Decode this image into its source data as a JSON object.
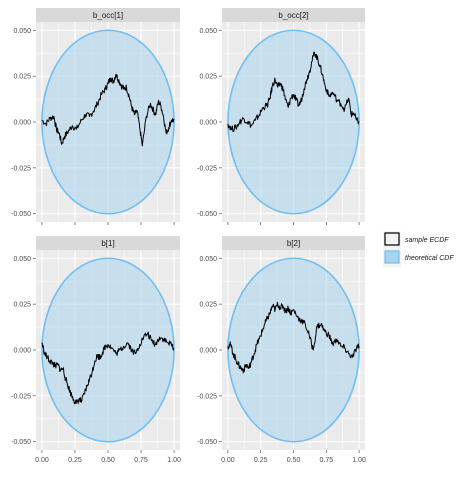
{
  "chart_data": {
    "type": "line",
    "layout": "facet_wrap_2x2",
    "colors": {
      "panel_bg": "#ebebeb",
      "grid": "#ffffff",
      "strip_bg": "#d9d9d9",
      "band_fill": "#a9d3ec",
      "band_stroke": "#73bff4",
      "ecdf_line": "#000000"
    },
    "legend": {
      "position": "right",
      "items": [
        {
          "label": "sample ECDF",
          "key": "ecdf",
          "icon": "outlined-box"
        },
        {
          "label": "theoretical CDF",
          "key": "band",
          "icon": "filled-box"
        }
      ]
    },
    "panels": [
      {
        "title": "b_occ[1]",
        "x_ticks": [],
        "y_ticks": [
          "-0.050",
          "-0.025",
          "0.000",
          "0.025",
          "0.050"
        ],
        "xlim": [
          0,
          1
        ],
        "ylim": [
          -0.05,
          0.05
        ],
        "ecdf_diff": {
          "x": [
            0.0,
            0.03,
            0.06,
            0.09,
            0.11,
            0.13,
            0.15,
            0.17,
            0.2,
            0.23,
            0.26,
            0.3,
            0.33,
            0.36,
            0.39,
            0.42,
            0.45,
            0.48,
            0.5,
            0.52,
            0.54,
            0.56,
            0.58,
            0.6,
            0.62,
            0.64,
            0.66,
            0.68,
            0.7,
            0.72,
            0.74,
            0.76,
            0.79,
            0.82,
            0.84,
            0.86,
            0.88,
            0.9,
            0.92,
            0.94,
            0.96,
            0.98,
            1.0
          ],
          "y": [
            0.001,
            -0.001,
            0.002,
            0.003,
            -0.004,
            -0.006,
            -0.012,
            -0.008,
            -0.005,
            -0.002,
            -0.004,
            0.001,
            0.004,
            0.003,
            0.006,
            0.01,
            0.015,
            0.018,
            0.021,
            0.024,
            0.022,
            0.026,
            0.023,
            0.02,
            0.018,
            0.019,
            0.014,
            0.008,
            0.004,
            0.006,
            -0.003,
            -0.013,
            0.003,
            0.01,
            0.007,
            0.004,
            0.011,
            0.009,
            0.003,
            -0.006,
            -0.003,
            0.001,
            0.001
          ]
        }
      },
      {
        "title": "b_occ[2]",
        "x_ticks": [],
        "y_ticks": [
          "-0.050",
          "-0.025",
          "0.000",
          "0.025",
          "0.050"
        ],
        "xlim": [
          0,
          1
        ],
        "ylim": [
          -0.05,
          0.05
        ],
        "ecdf_diff": {
          "x": [
            0.0,
            0.03,
            0.06,
            0.09,
            0.12,
            0.15,
            0.18,
            0.21,
            0.24,
            0.27,
            0.3,
            0.32,
            0.34,
            0.36,
            0.38,
            0.4,
            0.42,
            0.44,
            0.46,
            0.48,
            0.5,
            0.52,
            0.54,
            0.56,
            0.58,
            0.6,
            0.62,
            0.64,
            0.66,
            0.68,
            0.7,
            0.72,
            0.74,
            0.77,
            0.8,
            0.83,
            0.86,
            0.89,
            0.92,
            0.94,
            0.96,
            0.98,
            1.0
          ],
          "y": [
            -0.001,
            -0.004,
            -0.003,
            0.0,
            0.002,
            0.0,
            -0.002,
            0.001,
            0.004,
            0.008,
            0.009,
            0.013,
            0.02,
            0.023,
            0.019,
            0.021,
            0.018,
            0.012,
            0.008,
            0.013,
            0.015,
            0.012,
            0.009,
            0.012,
            0.018,
            0.023,
            0.027,
            0.033,
            0.038,
            0.035,
            0.031,
            0.026,
            0.02,
            0.014,
            0.016,
            0.012,
            0.01,
            0.007,
            0.013,
            0.004,
            0.005,
            0.001,
            0.0
          ]
        }
      },
      {
        "title": "b[1]",
        "x_ticks": [
          "0.00",
          "0.25",
          "0.50",
          "0.75",
          "1.00"
        ],
        "y_ticks": [
          "-0.050",
          "-0.025",
          "0.000",
          "0.025",
          "0.050"
        ],
        "xlim": [
          0,
          1
        ],
        "ylim": [
          -0.05,
          0.05
        ],
        "ecdf_diff": {
          "x": [
            0.0,
            0.02,
            0.04,
            0.06,
            0.08,
            0.1,
            0.12,
            0.14,
            0.16,
            0.18,
            0.2,
            0.22,
            0.24,
            0.26,
            0.28,
            0.3,
            0.32,
            0.34,
            0.36,
            0.38,
            0.4,
            0.42,
            0.44,
            0.46,
            0.48,
            0.5,
            0.53,
            0.56,
            0.59,
            0.62,
            0.65,
            0.68,
            0.71,
            0.74,
            0.77,
            0.8,
            0.83,
            0.86,
            0.89,
            0.92,
            0.95,
            0.98,
            1.0
          ],
          "y": [
            0.004,
            -0.002,
            -0.004,
            -0.006,
            -0.007,
            -0.009,
            -0.008,
            -0.011,
            -0.01,
            -0.016,
            -0.02,
            -0.024,
            -0.027,
            -0.029,
            -0.027,
            -0.028,
            -0.024,
            -0.02,
            -0.016,
            -0.012,
            -0.006,
            -0.003,
            -0.004,
            -0.001,
            0.002,
            0.003,
            0.001,
            -0.002,
            0.0,
            0.002,
            0.004,
            0.0,
            -0.002,
            0.003,
            0.007,
            0.009,
            0.005,
            0.003,
            0.007,
            0.006,
            0.004,
            0.003,
            0.001
          ]
        }
      },
      {
        "title": "b[2]",
        "x_ticks": [
          "0.00",
          "0.25",
          "0.50",
          "0.75",
          "1.00"
        ],
        "y_ticks": [
          "-0.050",
          "-0.025",
          "0.000",
          "0.025",
          "0.050"
        ],
        "xlim": [
          0,
          1
        ],
        "ylim": [
          -0.05,
          0.05
        ],
        "ecdf_diff": {
          "x": [
            0.0,
            0.02,
            0.04,
            0.06,
            0.08,
            0.1,
            0.12,
            0.14,
            0.16,
            0.18,
            0.2,
            0.22,
            0.24,
            0.26,
            0.28,
            0.3,
            0.32,
            0.34,
            0.36,
            0.38,
            0.4,
            0.42,
            0.44,
            0.46,
            0.48,
            0.5,
            0.53,
            0.56,
            0.59,
            0.62,
            0.65,
            0.68,
            0.71,
            0.74,
            0.77,
            0.8,
            0.83,
            0.86,
            0.89,
            0.92,
            0.95,
            0.98,
            1.0
          ],
          "y": [
            0.002,
            0.003,
            -0.002,
            -0.005,
            -0.008,
            -0.01,
            -0.011,
            -0.008,
            -0.01,
            -0.006,
            -0.002,
            0.003,
            0.006,
            0.01,
            0.014,
            0.017,
            0.02,
            0.024,
            0.022,
            0.025,
            0.023,
            0.024,
            0.021,
            0.023,
            0.02,
            0.022,
            0.018,
            0.016,
            0.014,
            0.008,
            0.0,
            0.013,
            0.014,
            0.01,
            0.008,
            0.003,
            0.006,
            0.002,
            0.001,
            -0.002,
            -0.004,
            0.001,
            0.002
          ]
        }
      }
    ]
  }
}
